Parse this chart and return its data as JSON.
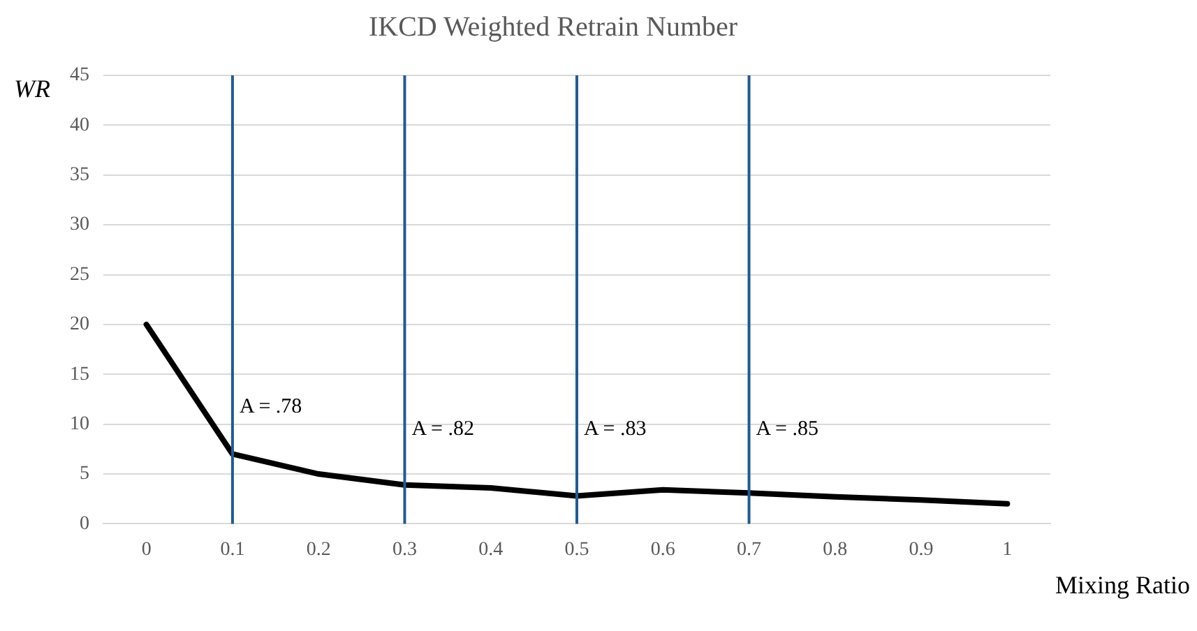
{
  "chart_data": {
    "type": "line",
    "title": "IKCD Weighted Retrain Number",
    "xlabel": "Mixing Ratio",
    "ylabel": "WR",
    "x": [
      0,
      0.1,
      0.2,
      0.3,
      0.4,
      0.5,
      0.6,
      0.7,
      0.8,
      0.9,
      1
    ],
    "series": [
      {
        "color": "#000000",
        "values": [
          20,
          7,
          5,
          3.9,
          3.6,
          2.8,
          3.4,
          3.1,
          2.7,
          2.4,
          2
        ]
      }
    ],
    "xlim": [
      -0.05,
      1.05
    ],
    "xticks": [
      0,
      0.1,
      0.2,
      0.3,
      0.4,
      0.5,
      0.6,
      0.7,
      0.8,
      0.9,
      1
    ],
    "ylim": [
      0,
      45
    ],
    "yticks": [
      0,
      5,
      10,
      15,
      20,
      25,
      30,
      35,
      40,
      45
    ],
    "ref_lines": [
      {
        "axis": "x",
        "value": 0.1,
        "label": "A = .78",
        "color": "#1f5a96"
      },
      {
        "axis": "x",
        "value": 0.3,
        "label": "A = .82",
        "color": "#1f5a96"
      },
      {
        "axis": "x",
        "value": 0.5,
        "label": "A = .83",
        "color": "#1f5a96"
      },
      {
        "axis": "x",
        "value": 0.7,
        "label": "A = .85",
        "color": "#1f5a96"
      }
    ],
    "grid": "y",
    "legend": false,
    "marker": "none",
    "line_style": "solid"
  }
}
